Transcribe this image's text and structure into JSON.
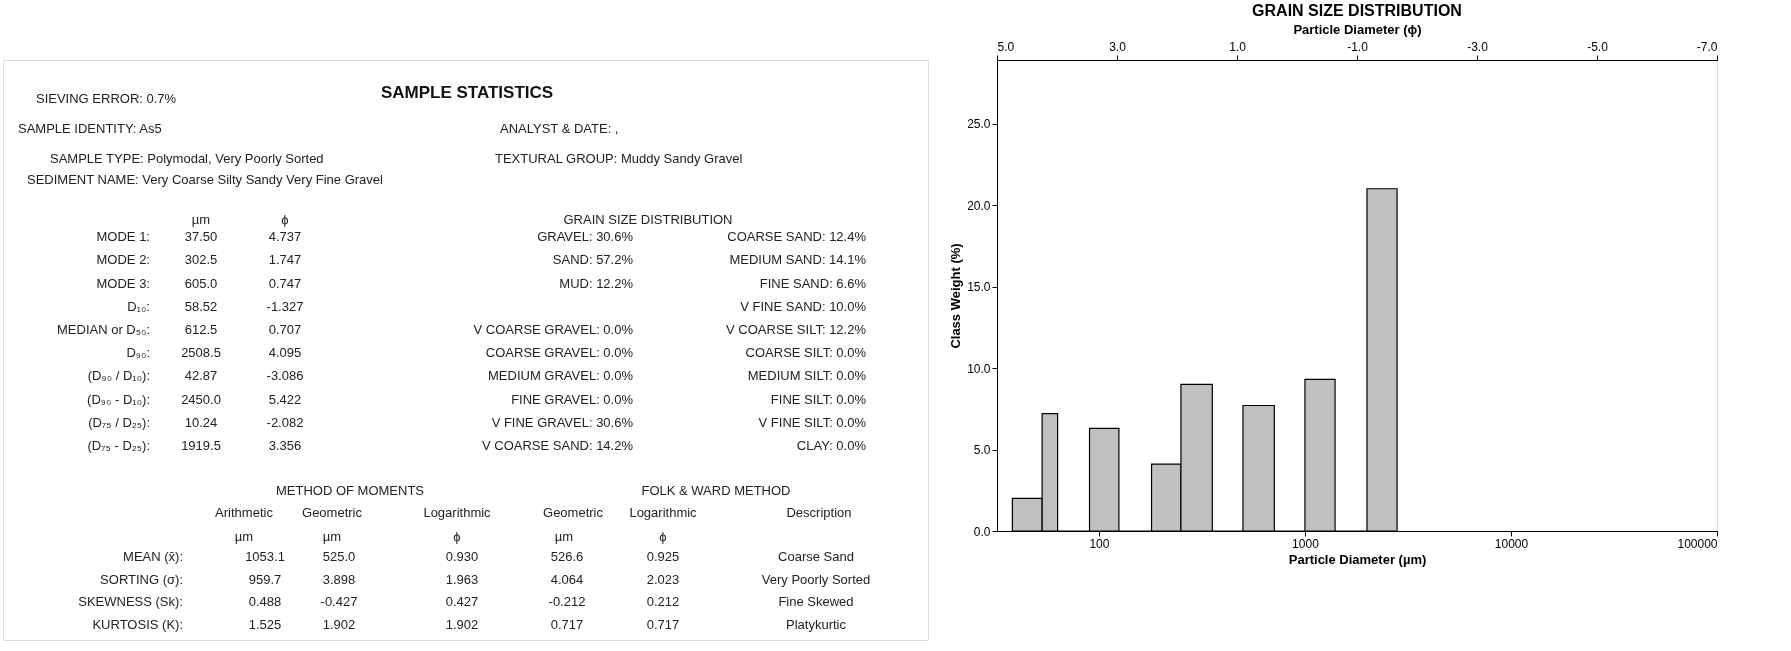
{
  "chart_data": [
    {
      "type": "other",
      "title": "SAMPLE STATISTICS",
      "annotations": [
        "SIEVING ERROR: 0.7%",
        "SAMPLE IDENTITY: As5",
        "ANALYST & DATE: ,",
        "SAMPLE TYPE: Polymodal, Very Poorly Sorted",
        "TEXTURAL GROUP: Muddy Sandy Gravel",
        "SEDIMENT NAME: Very Coarse Silty Sandy Very Fine Gravel",
        "µm",
        "ϕ",
        "MODE 1:",
        "37.50",
        "4.737",
        "MODE 2:",
        "302.5",
        "1.747",
        "MODE 3:",
        "605.0",
        "0.747",
        "D₁₀:",
        "58.52",
        "-1.327",
        "MEDIAN or D₅₀:",
        "612.5",
        "0.707",
        "D₉₀:",
        "2508.5",
        "4.095",
        "(D₉₀ / D₁₀):",
        "42.87",
        "-3.086",
        "(D₉₀ - D₁₀):",
        "2450.0",
        "5.422",
        "(D₇₅ / D₂₅):",
        "10.24",
        "-2.082",
        "(D₇₅ - D₂₅):",
        "1919.5",
        "3.356",
        "GRAIN SIZE DISTRIBUTION",
        "GRAVEL: 30.6%",
        "SAND: 57.2%",
        "MUD: 12.2%",
        "V COARSE GRAVEL: 0.0%",
        "COARSE GRAVEL: 0.0%",
        "MEDIUM GRAVEL: 0.0%",
        "FINE GRAVEL: 0.0%",
        "V FINE GRAVEL: 30.6%",
        "V COARSE SAND: 14.2%",
        "COARSE SAND: 12.4%",
        "MEDIUM SAND: 14.1%",
        "FINE SAND: 6.6%",
        "V FINE SAND: 10.0%",
        "V COARSE SILT: 12.2%",
        "COARSE SILT: 0.0%",
        "MEDIUM SILT: 0.0%",
        "FINE SILT: 0.0%",
        "V FINE SILT: 0.0%",
        "CLAY: 0.0%",
        "METHOD OF MOMENTS",
        "FOLK & WARD METHOD",
        "Arithmetic",
        "Geometric",
        "Logarithmic",
        "Geometric",
        "Logarithmic",
        "Description",
        "µm",
        "µm",
        "ϕ",
        "µm",
        "ϕ",
        "MEAN (x̄):",
        "1053.1",
        "525.0",
        "0.930",
        "526.6",
        "0.925",
        "Coarse Sand",
        "SORTING (σ):",
        "959.7",
        "3.898",
        "1.963",
        "4.064",
        "2.023",
        "Very Poorly Sorted",
        "SKEWNESS (Sk):",
        "0.488",
        "-0.427",
        "0.427",
        "-0.212",
        "0.212",
        "Fine Skewed",
        "KURTOSIS (K):",
        "1.525",
        "1.902",
        "1.902",
        "0.717",
        "0.717",
        "Platykurtic"
      ]
    },
    {
      "type": "histogram",
      "title": "GRAIN SIZE DISTRIBUTION",
      "xlabel": "Particle Diameter (µm)",
      "ylabel": "Class Weight (%)",
      "x2label": "Particle Diameter (ϕ)",
      "bins": [
        38,
        53,
        63,
        90,
        125,
        180,
        250,
        355,
        500,
        710,
        1000,
        1400,
        2000,
        2800
      ],
      "values": [
        2.0,
        7.2,
        0,
        6.3,
        0,
        4.1,
        9.0,
        0,
        7.7,
        0,
        9.3,
        0,
        21.0
      ],
      "color": "#c0c0c0",
      "log": "x",
      "grid": false,
      "xlim": [
        32,
        100000
      ],
      "xticks": [
        100,
        1000,
        10000,
        100000
      ],
      "x2lim": [
        5,
        -7
      ],
      "x2ticks": [
        {
          "value": 5,
          "label": "5.0"
        },
        {
          "value": 3,
          "label": "3.0"
        },
        {
          "value": 1,
          "label": "1.0"
        },
        {
          "value": -1,
          "label": "-1.0"
        },
        {
          "value": -3,
          "label": "-3.0"
        },
        {
          "value": -5,
          "label": "-5.0"
        },
        {
          "value": -7,
          "label": "-7.0"
        }
      ],
      "ylim": [
        0,
        28.9
      ],
      "yticks": [
        {
          "value": 0,
          "label": "0.0"
        },
        {
          "value": 5,
          "label": "5.0"
        },
        {
          "value": 10,
          "label": "10.0"
        },
        {
          "value": 15,
          "label": "15.0"
        },
        {
          "value": 20,
          "label": "20.0"
        },
        {
          "value": 25,
          "label": "25.0"
        }
      ]
    }
  ]
}
